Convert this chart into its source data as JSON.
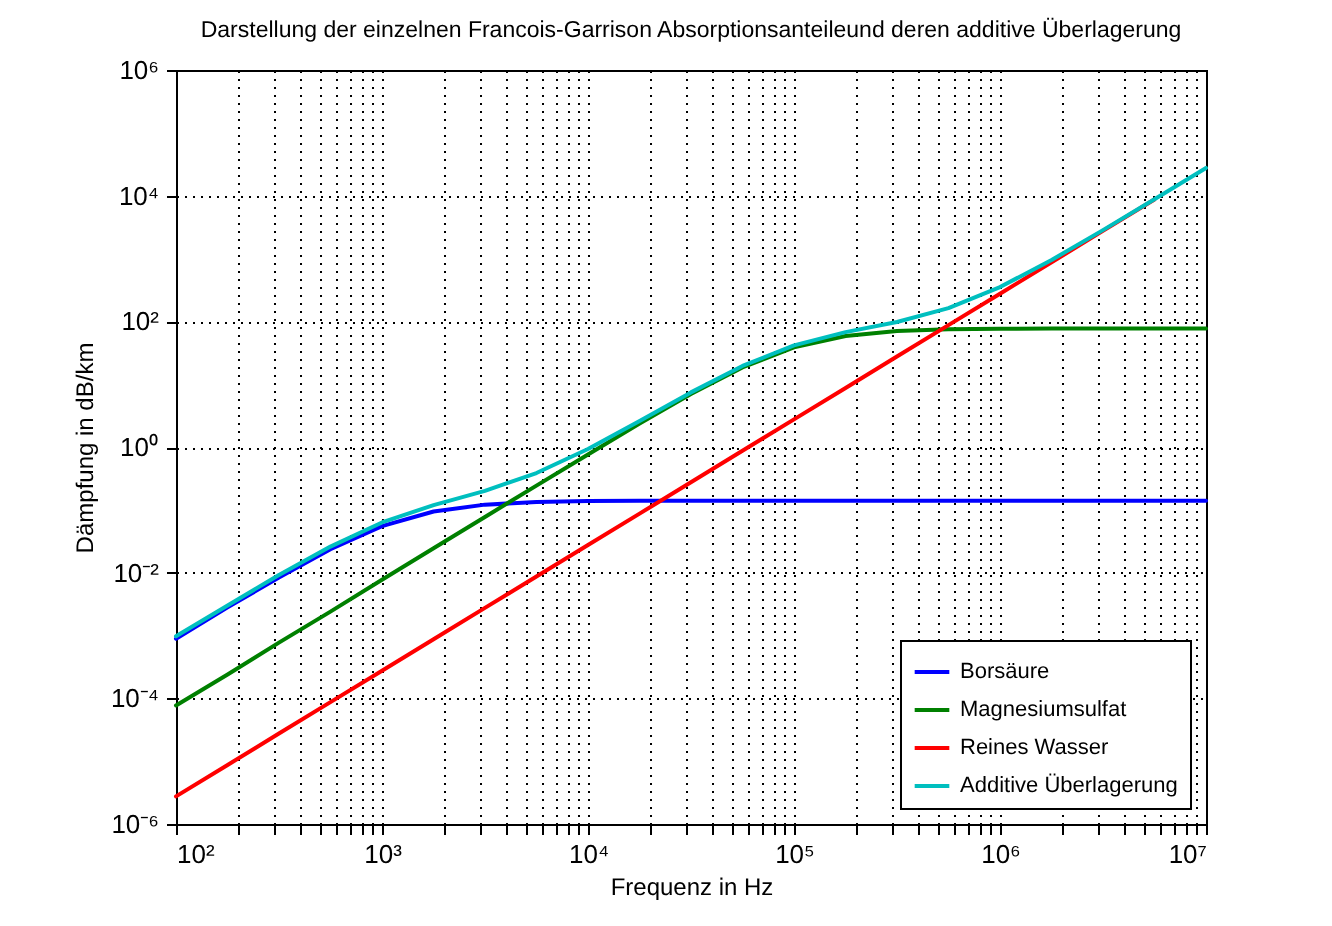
{
  "chart_data": {
    "type": "line",
    "title": "Darstellung der einzelnen Francois-Garrison Absorptionsanteileund deren additive Überlagerung",
    "xlabel": "Frequenz in Hz",
    "ylabel": "Dämpfung in dB/km",
    "x": [
      100,
      178,
      316,
      562,
      1000,
      1780,
      3160,
      5620,
      10000,
      17800,
      31600,
      56200,
      100000,
      178000,
      316000,
      562000,
      1000000,
      1780000,
      3160000,
      5620000,
      10000000
    ],
    "series": [
      {
        "name": "Borsäure",
        "color": "#0000ff",
        "values": [
          0.00089,
          0.0028,
          0.0084,
          0.0236,
          0.055,
          0.094,
          0.121,
          0.133,
          0.138,
          0.139,
          0.14,
          0.14,
          0.14,
          0.14,
          0.14,
          0.14,
          0.14,
          0.14,
          0.14,
          0.14,
          0.14
        ]
      },
      {
        "name": "Magnesiumsulfat",
        "color": "#008000",
        "values": [
          7.7e-05,
          0.00024,
          0.00077,
          0.0024,
          0.0077,
          0.0244,
          0.077,
          0.243,
          0.76,
          2.37,
          7.0,
          18.5,
          38.5,
          58.5,
          70,
          74.6,
          76.2,
          76.8,
          77,
          77,
          77
        ]
      },
      {
        "name": "Reines Wasser",
        "color": "#ff0000",
        "values": [
          2.75e-06,
          8.7e-06,
          2.75e-05,
          8.7e-05,
          0.000275,
          0.00087,
          0.00275,
          0.0087,
          0.0275,
          0.087,
          0.275,
          0.87,
          2.75,
          8.7,
          27.5,
          87,
          275,
          870,
          2750,
          8700,
          null
        ]
      },
      {
        "name": "Additive Überlagerung",
        "color": "#00bfbf",
        "values": [
          0.00097,
          0.003,
          0.0092,
          0.026,
          0.063,
          0.119,
          0.2,
          0.385,
          0.93,
          2.6,
          7.4,
          19.5,
          41.4,
          67.3,
          97.6,
          162,
          351,
          947,
          2827,
          8777,
          27600
        ]
      }
    ],
    "log": "xy",
    "xlim": [
      100,
      10000000
    ],
    "ylim": [
      1e-06,
      1000000
    ],
    "xticks": [
      {
        "value": 100,
        "label": "10²"
      },
      {
        "value": 200,
        "label": null
      },
      {
        "value": 300,
        "label": null
      },
      {
        "value": 400,
        "label": null
      },
      {
        "value": 500,
        "label": null
      },
      {
        "value": 600,
        "label": null
      },
      {
        "value": 700,
        "label": null
      },
      {
        "value": 800,
        "label": null
      },
      {
        "value": 900,
        "label": null
      },
      {
        "value": 1000,
        "label": "10³"
      },
      {
        "value": 2000,
        "label": null
      },
      {
        "value": 3000,
        "label": null
      },
      {
        "value": 4000,
        "label": null
      },
      {
        "value": 5000,
        "label": null
      },
      {
        "value": 6000,
        "label": null
      },
      {
        "value": 7000,
        "label": null
      },
      {
        "value": 8000,
        "label": null
      },
      {
        "value": 9000,
        "label": null
      },
      {
        "value": 10000,
        "label": "10⁴"
      },
      {
        "value": 20000,
        "label": null
      },
      {
        "value": 30000,
        "label": null
      },
      {
        "value": 40000,
        "label": null
      },
      {
        "value": 50000,
        "label": null
      },
      {
        "value": 60000,
        "label": null
      },
      {
        "value": 70000,
        "label": null
      },
      {
        "value": 80000,
        "label": null
      },
      {
        "value": 90000,
        "label": null
      },
      {
        "value": 100000,
        "label": "10⁵"
      },
      {
        "value": 200000,
        "label": null
      },
      {
        "value": 300000,
        "label": null
      },
      {
        "value": 400000,
        "label": null
      },
      {
        "value": 500000,
        "label": null
      },
      {
        "value": 600000,
        "label": null
      },
      {
        "value": 700000,
        "label": null
      },
      {
        "value": 800000,
        "label": null
      },
      {
        "value": 900000,
        "label": null
      },
      {
        "value": 1000000,
        "label": "10⁶"
      },
      {
        "value": 2000000,
        "label": null
      },
      {
        "value": 3000000,
        "label": null
      },
      {
        "value": 4000000,
        "label": null
      },
      {
        "value": 5000000,
        "label": null
      },
      {
        "value": 6000000,
        "label": null
      },
      {
        "value": 7000000,
        "label": null
      },
      {
        "value": 8000000,
        "label": null
      },
      {
        "value": 9000000,
        "label": null
      },
      {
        "value": 10000000,
        "label": "10⁷"
      }
    ],
    "yticks": [
      {
        "value": 1e-06,
        "label": "10⁻⁶"
      },
      {
        "value": 0.0001,
        "label": "10⁻⁴"
      },
      {
        "value": 0.01,
        "label": "10⁻²"
      },
      {
        "value": 1,
        "label": "10⁰"
      },
      {
        "value": 100,
        "label": "10²"
      },
      {
        "value": 10000,
        "label": "10⁴"
      },
      {
        "value": 1000000,
        "label": "10⁶"
      }
    ],
    "grid": true,
    "legend": "bottom right",
    "line_style": "solid",
    "marker": "none"
  }
}
